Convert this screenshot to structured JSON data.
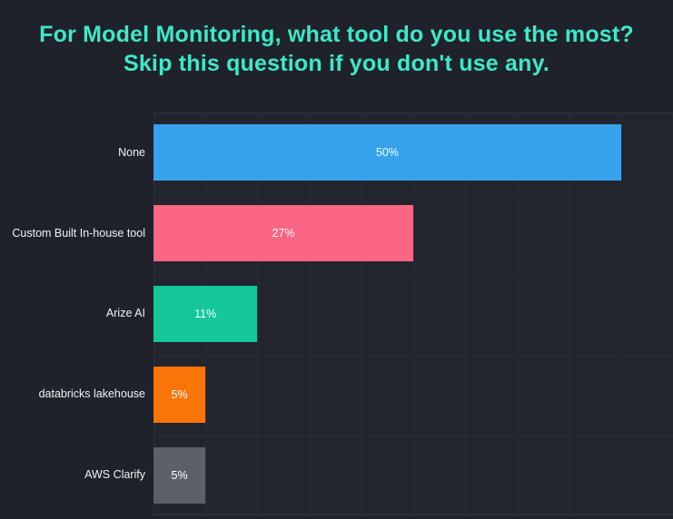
{
  "page": {
    "background": "#1f222b"
  },
  "title": {
    "line1": "For Model Monitoring, what tool do you use the most?",
    "line2": "Skip this question if you don't use any.",
    "color": "#3de9c8"
  },
  "chart_data": {
    "type": "bar",
    "orientation": "horizontal",
    "title": "For Model Monitoring, what tool do you use the most? Skip this question if you don't use any.",
    "categories": [
      "None",
      "Custom Built In-house tool",
      "Arize AI",
      "databricks lakehouse",
      "AWS Clarify"
    ],
    "values": [
      50,
      27,
      11,
      5,
      5
    ],
    "value_labels": [
      "50%",
      "27%",
      "11%",
      "5%",
      "5%"
    ],
    "bar_colors": [
      "#36a2eb",
      "#fa6684",
      "#15c69a",
      "#fa7507",
      "#5d606a"
    ],
    "xlabel": "",
    "ylabel": "",
    "axis": {
      "tick_labels_visible": false,
      "xlim_units": [
        0,
        10
      ],
      "bar_units": [
        9,
        5,
        2,
        1,
        1
      ],
      "grid": "vertical gridlines every 1 unit, horizontal gridlines between category rows"
    },
    "legend_visible": false,
    "value_label_color": "#ffffff",
    "category_label_color": "#f2f2f2",
    "grid_color": "#2c2f3a",
    "plot_background": "#22242e"
  }
}
